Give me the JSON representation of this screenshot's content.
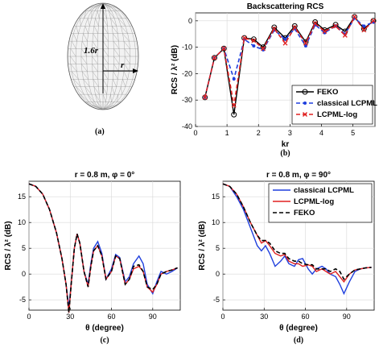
{
  "chart_data": [
    {
      "id": "a",
      "type": "diagram",
      "caption": "(a)",
      "labels": {
        "height": "1.6r",
        "radius": "r"
      }
    },
    {
      "id": "b",
      "type": "line",
      "caption": "(b)",
      "title": "Backscattering RCS",
      "xlabel": "kr",
      "ylabel": "RCS / λ² (dB)",
      "xlim": [
        0,
        5.7
      ],
      "ylim": [
        -40,
        3
      ],
      "xticks": [
        0,
        1,
        2,
        3,
        4,
        5
      ],
      "yticks": [
        -40,
        -30,
        -20,
        -10,
        0
      ],
      "grid": true,
      "legend": "bottom-right",
      "series": [
        {
          "name": "FEKO",
          "style": "solid",
          "color": "#000000",
          "marker": "circle",
          "x": [
            0.3,
            0.6,
            0.9,
            1.22,
            1.55,
            1.85,
            2.15,
            2.5,
            2.85,
            3.15,
            3.5,
            3.8,
            4.1,
            4.45,
            4.75,
            5.05,
            5.35,
            5.65
          ],
          "y": [
            -29,
            -14,
            -10.5,
            -35.5,
            -6.5,
            -7,
            -10,
            -2.5,
            -6.5,
            -2,
            -8,
            -0.5,
            -3.5,
            -1.5,
            -4,
            1.5,
            -3,
            0
          ]
        },
        {
          "name": "classical LCPML",
          "style": "dashed",
          "color": "#1f3fdd",
          "marker": "dot",
          "x": [
            0.3,
            0.6,
            0.9,
            1.22,
            1.55,
            1.85,
            2.15,
            2.5,
            2.85,
            3.15,
            3.5,
            3.8,
            4.1,
            4.45,
            4.75,
            5.05,
            5.35,
            5.65
          ],
          "y": [
            -29,
            -14,
            -10.5,
            -22,
            -7,
            -9.5,
            -11,
            -3.5,
            -7,
            -3,
            -9.5,
            -1.5,
            -4.5,
            -2,
            -5,
            1,
            -2,
            -0.5
          ]
        },
        {
          "name": "LCPML-log",
          "style": "dashed",
          "color": "#e02020",
          "marker": "x",
          "x": [
            0.3,
            0.6,
            0.9,
            1.22,
            1.55,
            1.85,
            2.15,
            2.5,
            2.85,
            3.15,
            3.5,
            3.8,
            4.1,
            4.45,
            4.75,
            5.05,
            5.35,
            5.65
          ],
          "y": [
            -29,
            -14,
            -10.5,
            -32,
            -6.5,
            -7.5,
            -10.5,
            -3,
            -8.5,
            -2.5,
            -8.5,
            -1,
            -4,
            -2,
            -5.5,
            1.5,
            -3.5,
            0
          ]
        }
      ]
    },
    {
      "id": "c",
      "type": "line",
      "caption": "(c)",
      "title": "r = 0.8 m, φ = 0°",
      "xlabel": "θ (degree)",
      "ylabel": "RCS / λ² (dB)",
      "xlim": [
        0,
        110
      ],
      "ylim": [
        -7,
        18
      ],
      "xticks": [
        0,
        30,
        60,
        90
      ],
      "yticks": [
        -5,
        0,
        5,
        10,
        15
      ],
      "grid": true,
      "series": [
        {
          "name": "classical LCPML",
          "style": "solid",
          "color": "#1f3fdd",
          "x": [
            0,
            5,
            10,
            15,
            20,
            24,
            27,
            29,
            31,
            33,
            35,
            37,
            40,
            43,
            45,
            47,
            50,
            53,
            56,
            60,
            63,
            66,
            70,
            73,
            76,
            80,
            83,
            86,
            90,
            93,
            96,
            100,
            104,
            108
          ],
          "y": [
            17.5,
            17,
            15.5,
            12.5,
            8,
            3,
            -2,
            -6.5,
            -1,
            5,
            7.8,
            6,
            0.5,
            -2,
            2,
            5,
            6.3,
            4,
            -1,
            1,
            3.8,
            3.2,
            -1.5,
            -0.5,
            2,
            3.5,
            2,
            -2,
            -3.8,
            -1.5,
            0.5,
            0,
            0.5,
            1.2
          ]
        },
        {
          "name": "LCPML-log",
          "style": "solid",
          "color": "#e02020",
          "x": [
            0,
            5,
            10,
            15,
            20,
            24,
            27,
            29,
            31,
            33,
            35,
            37,
            40,
            43,
            45,
            47,
            50,
            53,
            56,
            60,
            63,
            66,
            70,
            73,
            76,
            80,
            83,
            86,
            90,
            93,
            96,
            100,
            104,
            108
          ],
          "y": [
            17.5,
            17,
            15.5,
            12.5,
            8,
            3,
            -2,
            -7.5,
            -1,
            5,
            7.8,
            6,
            0.5,
            -2.5,
            1.5,
            4.5,
            5.5,
            3.5,
            -1,
            0.5,
            3.5,
            3,
            -2,
            -1,
            1,
            1.5,
            0.5,
            -2.5,
            -3.5,
            -2,
            0,
            0.5,
            0.8,
            1.2
          ]
        },
        {
          "name": "FEKO",
          "style": "dashed",
          "color": "#000000",
          "x": [
            0,
            5,
            10,
            15,
            20,
            24,
            27,
            29,
            31,
            33,
            35,
            37,
            40,
            43,
            45,
            47,
            50,
            53,
            56,
            60,
            63,
            66,
            70,
            73,
            76,
            80,
            83,
            86,
            90,
            93,
            96,
            100,
            104,
            108
          ],
          "y": [
            17.5,
            17,
            15.5,
            12.5,
            8,
            3,
            -2,
            -7.5,
            -1,
            5,
            7.8,
            6,
            0.5,
            -2.5,
            1.5,
            4.5,
            5.5,
            3.5,
            -1,
            0.5,
            3.5,
            3,
            -2,
            -1,
            1.5,
            1.8,
            0.5,
            -2.5,
            -3,
            -2,
            0,
            0.5,
            0.8,
            1.2
          ]
        }
      ]
    },
    {
      "id": "d",
      "type": "line",
      "caption": "(d)",
      "title": "r = 0.8 m, φ = 90°",
      "xlabel": "θ (degree)",
      "ylabel": "RCS / λ² (dB)",
      "xlim": [
        0,
        110
      ],
      "ylim": [
        -7,
        18
      ],
      "xticks": [
        0,
        30,
        60,
        90
      ],
      "yticks": [
        -5,
        0,
        5,
        10,
        15
      ],
      "grid": true,
      "legend": "top-right",
      "series": [
        {
          "name": "classical LCPML",
          "style": "solid",
          "color": "#1f3fdd",
          "x": [
            0,
            5,
            10,
            15,
            20,
            25,
            28,
            31,
            34,
            38,
            42,
            45,
            48,
            52,
            55,
            58,
            62,
            65,
            68,
            72,
            75,
            78,
            82,
            85,
            88,
            92,
            96,
            100,
            104,
            108
          ],
          "y": [
            17.5,
            17,
            15,
            12.5,
            9,
            5.5,
            4.5,
            5.5,
            4,
            1.5,
            2.5,
            3.5,
            2,
            1.5,
            2.8,
            3,
            1,
            0,
            1,
            1.5,
            1,
            0,
            -0.5,
            -2,
            -3.8,
            -1.5,
            0.5,
            1,
            1.2,
            1.3
          ]
        },
        {
          "name": "LCPML-log",
          "style": "solid",
          "color": "#e02020",
          "x": [
            0,
            5,
            10,
            15,
            20,
            25,
            28,
            31,
            34,
            38,
            42,
            45,
            48,
            52,
            55,
            58,
            62,
            65,
            68,
            72,
            75,
            78,
            82,
            85,
            88,
            92,
            96,
            100,
            104,
            108
          ],
          "y": [
            17.5,
            17,
            15.5,
            13,
            10,
            7.5,
            6,
            6.5,
            5.5,
            4,
            3.5,
            3.8,
            2.5,
            2,
            2,
            1.5,
            1.8,
            1.5,
            0.5,
            1,
            0.5,
            0,
            0.5,
            -0.5,
            -1.5,
            0,
            0.8,
            1,
            1.2,
            1.3
          ]
        },
        {
          "name": "FEKO",
          "style": "dashed",
          "color": "#000000",
          "x": [
            0,
            5,
            10,
            15,
            20,
            25,
            28,
            31,
            34,
            38,
            42,
            45,
            48,
            52,
            55,
            58,
            62,
            65,
            68,
            72,
            75,
            78,
            82,
            85,
            88,
            92,
            96,
            100,
            104,
            108
          ],
          "y": [
            17.5,
            17,
            15.5,
            13,
            10,
            7.5,
            6.5,
            6.5,
            6,
            4.5,
            4,
            4,
            3,
            2.5,
            2.5,
            2,
            1.8,
            1.8,
            1,
            1,
            1,
            0.5,
            1,
            0.5,
            -1,
            0,
            0.8,
            1,
            1.2,
            1.3
          ]
        }
      ]
    }
  ]
}
